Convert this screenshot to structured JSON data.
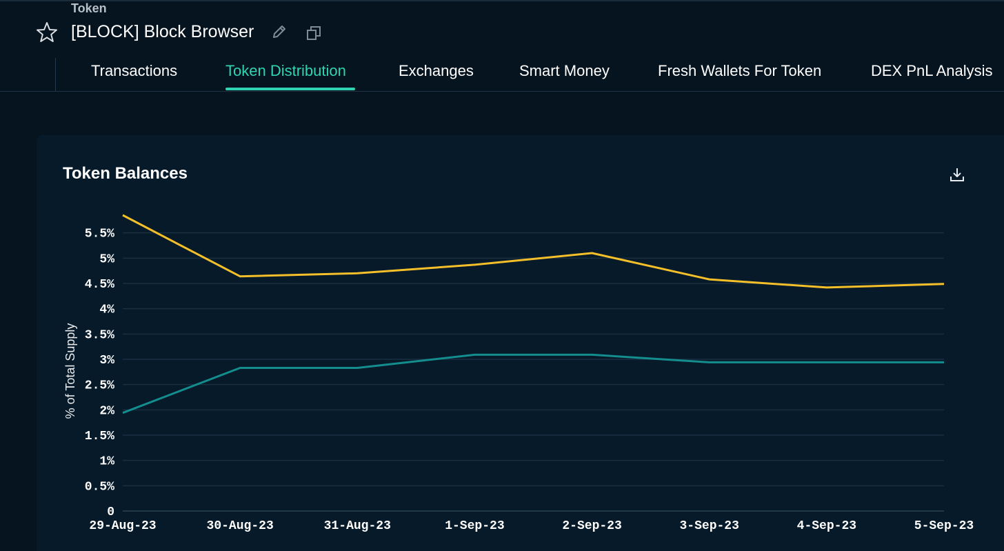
{
  "header": {
    "section_label": "Token",
    "title": "[BLOCK] Block Browser"
  },
  "icons": {
    "favorite": "star-icon",
    "edit": "pencil-icon",
    "copy": "copy-icon",
    "download": "download-icon"
  },
  "tabs": [
    {
      "label": "Transactions",
      "active": false
    },
    {
      "label": "Token Distribution",
      "active": true
    },
    {
      "label": "Exchanges",
      "active": false
    },
    {
      "label": "Smart Money",
      "active": false
    },
    {
      "label": "Fresh Wallets For Token",
      "active": false
    },
    {
      "label": "DEX PnL Analysis",
      "active": false
    }
  ],
  "colors": {
    "background": "#06141f",
    "card": "#061a29",
    "accent": "#2fd5b2",
    "series_yellow": "#f5bf2a",
    "series_teal": "#138d8d",
    "grid": "#183042"
  },
  "card": {
    "title": "Token Balances"
  },
  "chart_data": {
    "type": "line",
    "title": "Token Balances",
    "xlabel": "",
    "ylabel": "% of Total Supply",
    "categories": [
      "29-Aug-23",
      "30-Aug-23",
      "31-Aug-23",
      "1-Sep-23",
      "2-Sep-23",
      "3-Sep-23",
      "4-Sep-23",
      "5-Sep-23"
    ],
    "series": [
      {
        "color": "#f5bf2a",
        "values": [
          5.85,
          4.64,
          4.7,
          4.87,
          5.1,
          4.58,
          4.42,
          4.49
        ]
      },
      {
        "color": "#138d8d",
        "values": [
          1.94,
          2.83,
          2.83,
          3.09,
          3.09,
          2.94,
          2.94,
          2.94
        ]
      }
    ],
    "ylim": [
      0,
      5.85
    ],
    "yticks": [
      0,
      0.5,
      1,
      1.5,
      2,
      2.5,
      3,
      3.5,
      4,
      4.5,
      5,
      5.5
    ],
    "ytick_labels": [
      "0",
      "0.5%",
      "1%",
      "1.5%",
      "2%",
      "2.5%",
      "3%",
      "3.5%",
      "4%",
      "4.5%",
      "5%",
      "5.5%"
    ],
    "grid": true,
    "legend": "none"
  }
}
